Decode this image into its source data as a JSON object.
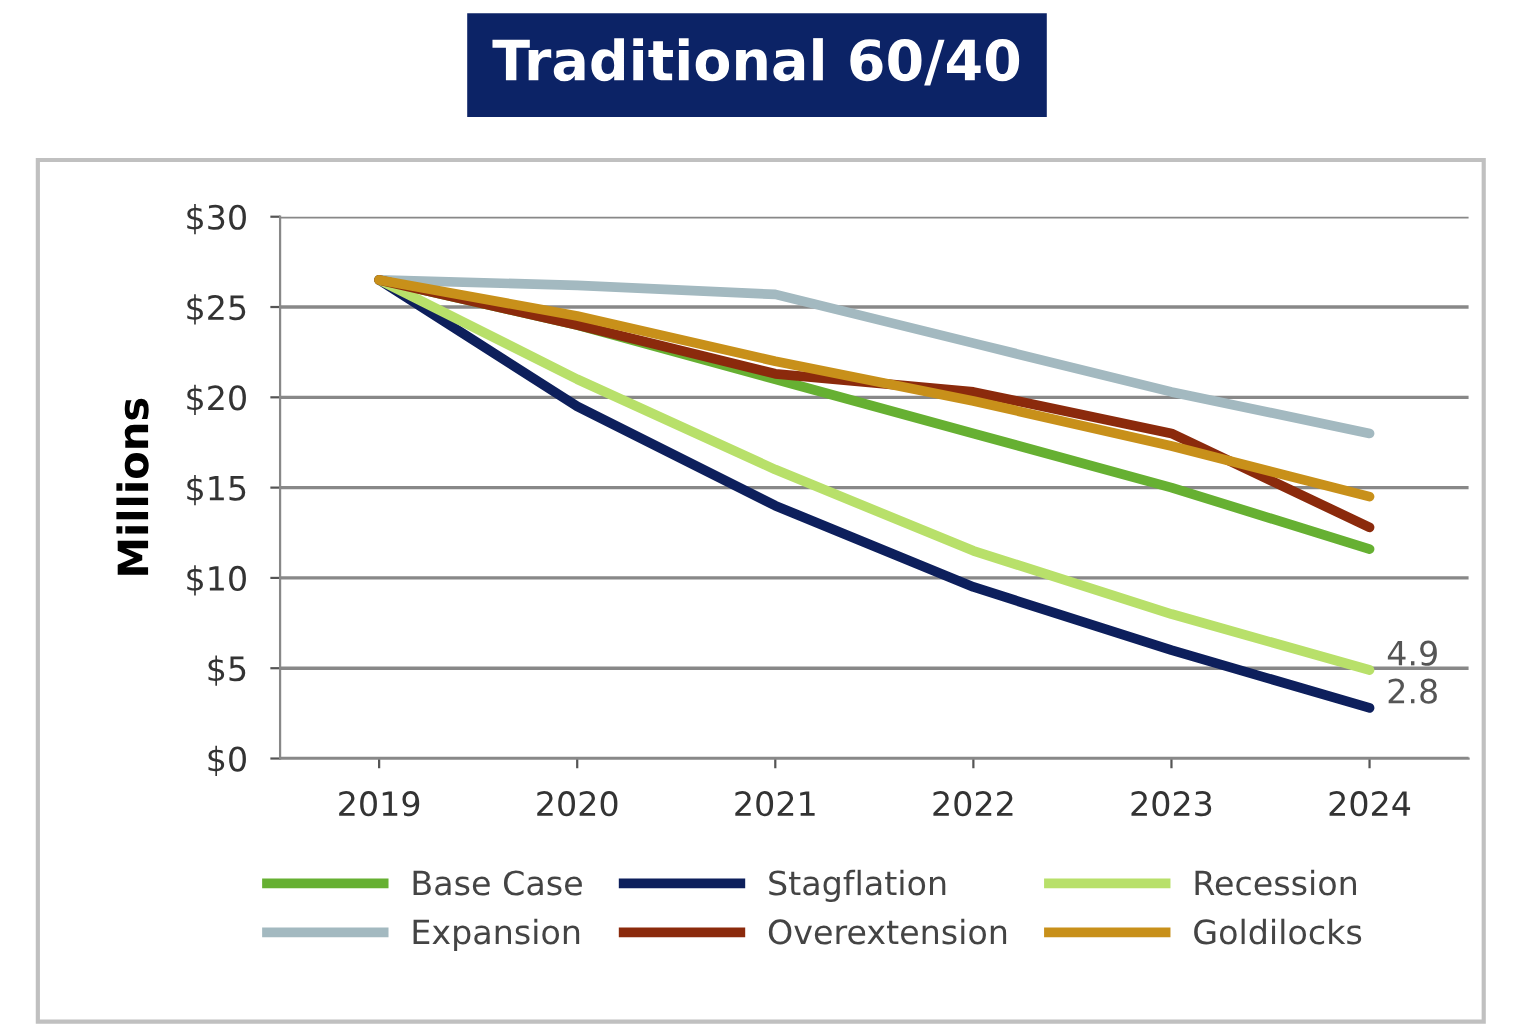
{
  "chart_data": {
    "type": "line",
    "title": "Traditional 60/40",
    "ylabel": "Millions",
    "categories": [
      "2019",
      "2020",
      "2021",
      "2022",
      "2023",
      "2024"
    ],
    "series": [
      {
        "name": "Base Case",
        "color": "#66b032",
        "values": [
          26.5,
          24,
          21,
          18,
          15,
          11.6
        ]
      },
      {
        "name": "Stagflation",
        "color": "#0d1f5c",
        "values": [
          26.5,
          19.5,
          14,
          9.5,
          6,
          2.8
        ]
      },
      {
        "name": "Recession",
        "color": "#b8e06a",
        "values": [
          26.5,
          21,
          16,
          11.5,
          8,
          4.9
        ]
      },
      {
        "name": "Expansion",
        "color": "#a3b9c0",
        "values": [
          26.5,
          26.2,
          25.7,
          23,
          20.3,
          18
        ]
      },
      {
        "name": "Overextension",
        "color": "#8b2a0c",
        "values": [
          26.5,
          24,
          21.3,
          20.3,
          18,
          12.8
        ]
      },
      {
        "name": "Goldilocks",
        "color": "#c8901a",
        "values": [
          26.5,
          24.5,
          22,
          19.8,
          17.3,
          14.5
        ]
      }
    ],
    "ylim": [
      0,
      30
    ],
    "yticks": [
      {
        "value": 0,
        "label": "$0"
      },
      {
        "value": 5,
        "label": "$5"
      },
      {
        "value": 10,
        "label": "$10"
      },
      {
        "value": 15,
        "label": "$15"
      },
      {
        "value": 20,
        "label": "$20"
      },
      {
        "value": 25,
        "label": "$25"
      },
      {
        "value": 30,
        "label": "$30"
      }
    ],
    "annotations": [
      {
        "text": "4.9",
        "x": "2024",
        "y": 4.9
      },
      {
        "text": "2.8",
        "x": "2024",
        "y": 2.8
      }
    ],
    "grid": "y",
    "legend": "bottom",
    "marker": "none",
    "line_style": "solid"
  }
}
